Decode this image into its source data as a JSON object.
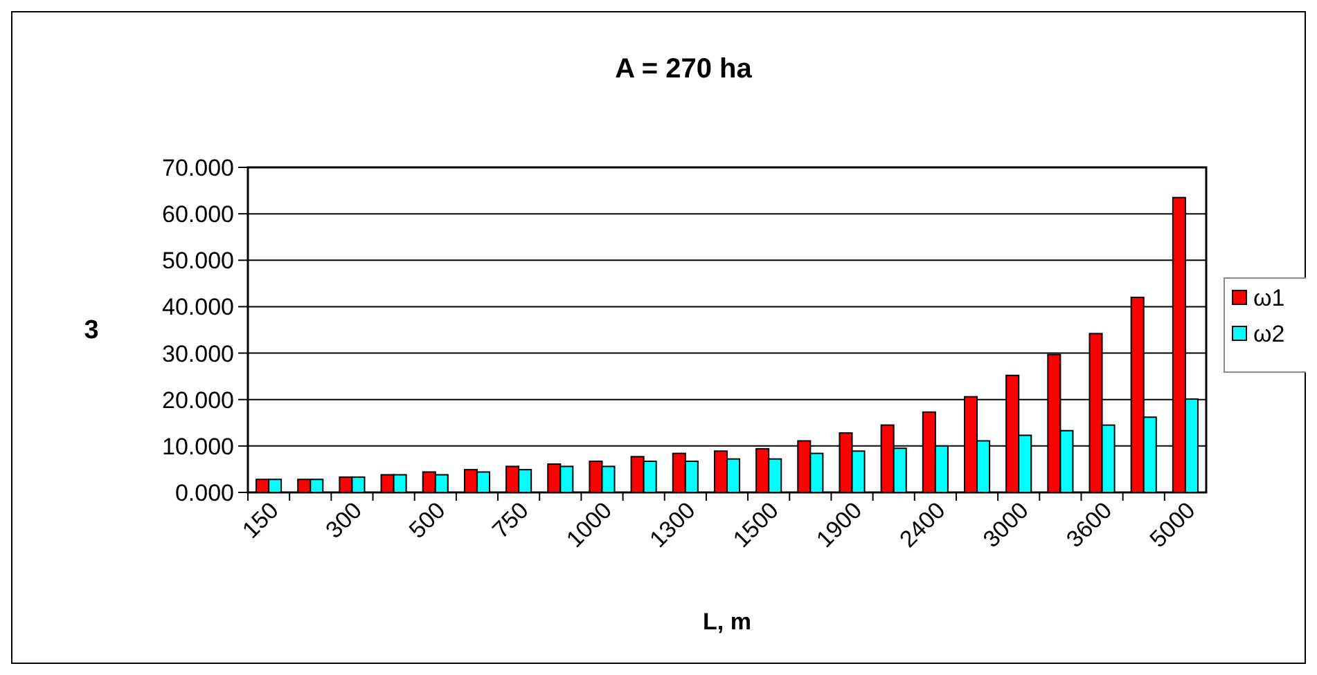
{
  "chart_data": {
    "type": "bar",
    "title": "A = 270 ha",
    "xlabel": "L, m",
    "ylabel": "3",
    "categories": [
      "150",
      null,
      "300",
      null,
      "500",
      null,
      "750",
      null,
      "1000",
      null,
      "1300",
      null,
      "1500",
      null,
      "1900",
      null,
      "2400",
      null,
      "3000",
      null,
      "3600",
      null,
      "5000"
    ],
    "series": [
      {
        "name": "ω1",
        "color": "#ff0000",
        "values": [
          2.8,
          2.8,
          3.3,
          3.8,
          4.4,
          4.9,
          5.6,
          6.1,
          6.7,
          7.7,
          8.4,
          8.9,
          9.4,
          11.1,
          12.8,
          14.5,
          17.3,
          20.6,
          25.2,
          29.7,
          34.2,
          42.0,
          63.5
        ]
      },
      {
        "name": "ω2",
        "color": "#00ffff",
        "values": [
          2.8,
          2.8,
          3.3,
          3.8,
          3.8,
          4.4,
          4.9,
          5.6,
          5.6,
          6.7,
          6.7,
          7.2,
          7.2,
          8.4,
          8.9,
          9.5,
          10.0,
          11.1,
          12.3,
          13.3,
          14.5,
          16.2,
          20.1
        ]
      }
    ],
    "ylim": [
      0,
      70
    ],
    "yticks": [
      {
        "value": 0,
        "label": "0.000"
      },
      {
        "value": 10,
        "label": "10.000"
      },
      {
        "value": 20,
        "label": "20.000"
      },
      {
        "value": 30,
        "label": "30.000"
      },
      {
        "value": 40,
        "label": "40.000"
      },
      {
        "value": 50,
        "label": "50.000"
      },
      {
        "value": 60,
        "label": "60.000"
      },
      {
        "value": 70,
        "label": "70.000"
      }
    ],
    "grid": "y",
    "legend": "right"
  }
}
